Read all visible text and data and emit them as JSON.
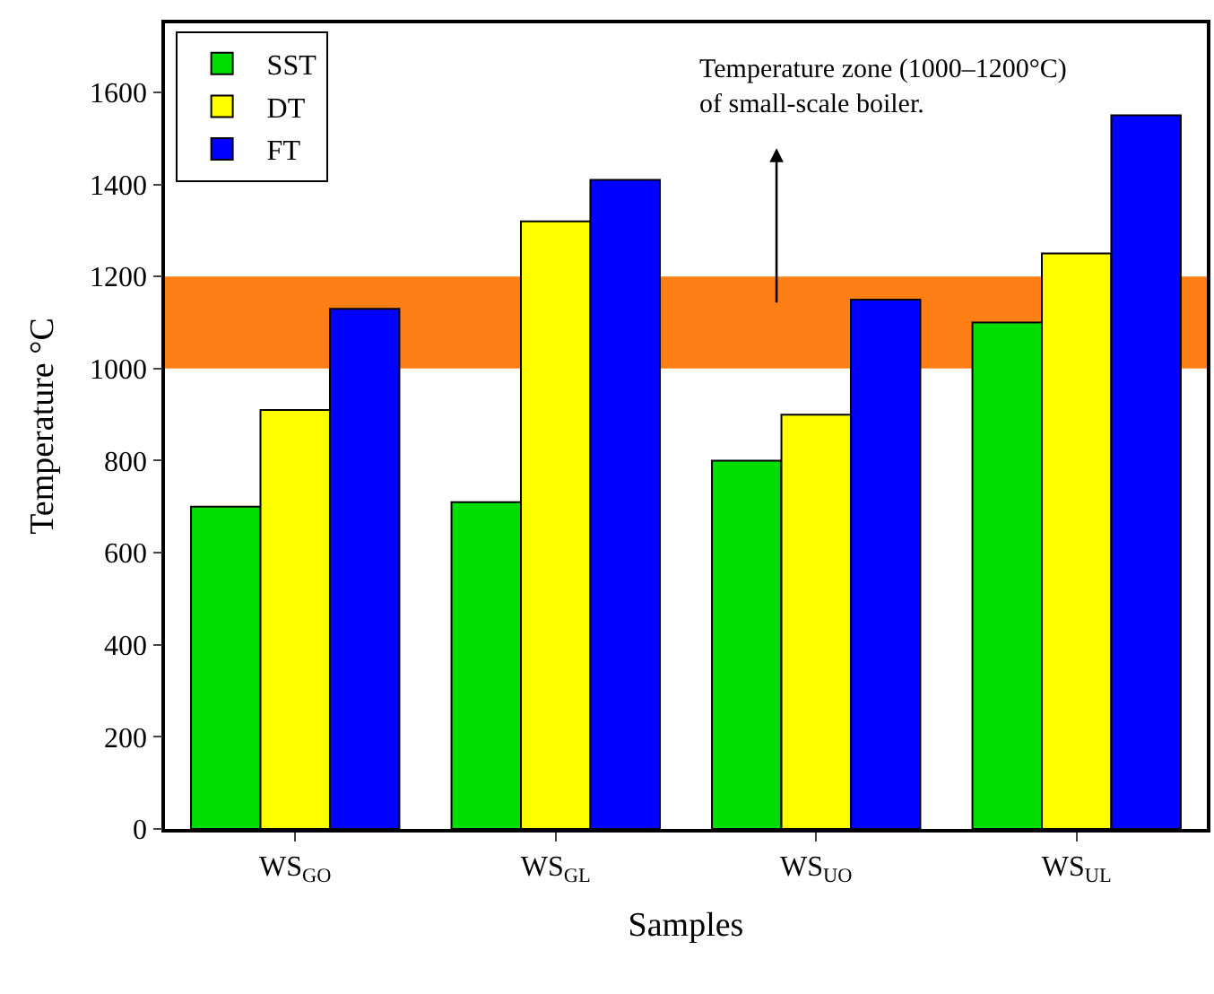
{
  "chart_data": {
    "type": "bar",
    "xlabel": "Samples",
    "ylabel": "Temperature °C",
    "categories": [
      "WS$_{GO}$",
      "WS$_{GL}$",
      "WS$_{UO}$",
      "WS$_{UL}$"
    ],
    "series": [
      {
        "name": "SST",
        "color": "#00dd00",
        "values": [
          700,
          710,
          800,
          1100
        ]
      },
      {
        "name": "DT",
        "color": "#ffff00",
        "values": [
          910,
          1320,
          900,
          1250
        ]
      },
      {
        "name": "FT",
        "color": "#0000ff",
        "values": [
          1130,
          1410,
          1150,
          1550
        ]
      }
    ],
    "ylim": [
      0,
      1750
    ],
    "yticks": [
      0,
      200,
      400,
      600,
      800,
      1000,
      1200,
      1400,
      1600
    ],
    "bands": [
      {
        "axis": "y",
        "from": 1000,
        "to": 1200,
        "color": "#ff7f17"
      }
    ],
    "annotations": [
      "Temperature zone (1000–1200°C)\nof small-scale boiler."
    ],
    "legend": "top left",
    "grid": false
  }
}
